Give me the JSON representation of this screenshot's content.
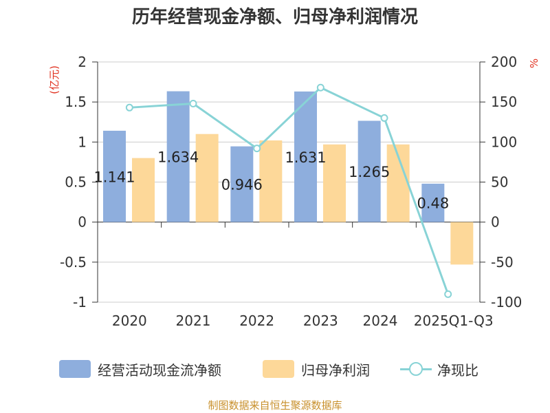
{
  "title": "历年经营现金净额、归母净利润情况",
  "footer": "制图数据来自恒生聚源数据库",
  "chart_data": {
    "type": "bar",
    "categories": [
      "2020",
      "2021",
      "2022",
      "2023",
      "2024",
      "2025Q1-Q3"
    ],
    "left_axis": {
      "label": "(亿元)",
      "ylim": [
        -1,
        2
      ],
      "ticks": [
        "-1",
        "-0.5",
        "0",
        "0.5",
        "1",
        "1.5",
        "2"
      ]
    },
    "right_axis": {
      "label": "%",
      "ylim": [
        -100,
        200
      ],
      "ticks": [
        "-100",
        "-50",
        "0",
        "50",
        "100",
        "150",
        "200"
      ]
    },
    "series": [
      {
        "name": "经营活动现金流净额",
        "kind": "bar",
        "axis": "left",
        "color": "#8eaedd",
        "values": [
          1.141,
          1.634,
          0.946,
          1.631,
          1.265,
          0.48
        ],
        "data_labels": [
          "1.141",
          "1.634",
          "0.946",
          "1.631",
          "1.265",
          "0.48"
        ]
      },
      {
        "name": "归母净利润",
        "kind": "bar",
        "axis": "left",
        "color": "#fdd899",
        "values": [
          0.8,
          1.1,
          1.02,
          0.97,
          0.97,
          -0.53
        ]
      },
      {
        "name": "净现比",
        "kind": "line",
        "axis": "right",
        "color": "#88d3d6",
        "values": [
          143,
          148,
          92,
          168,
          130,
          -90
        ]
      }
    ],
    "grid": true,
    "legend_position": "bottom",
    "colors": {
      "left_axis_label": "#e0301e",
      "right_axis_label": "#e0301e",
      "text": "#333333",
      "grid": "#cccccc"
    }
  }
}
